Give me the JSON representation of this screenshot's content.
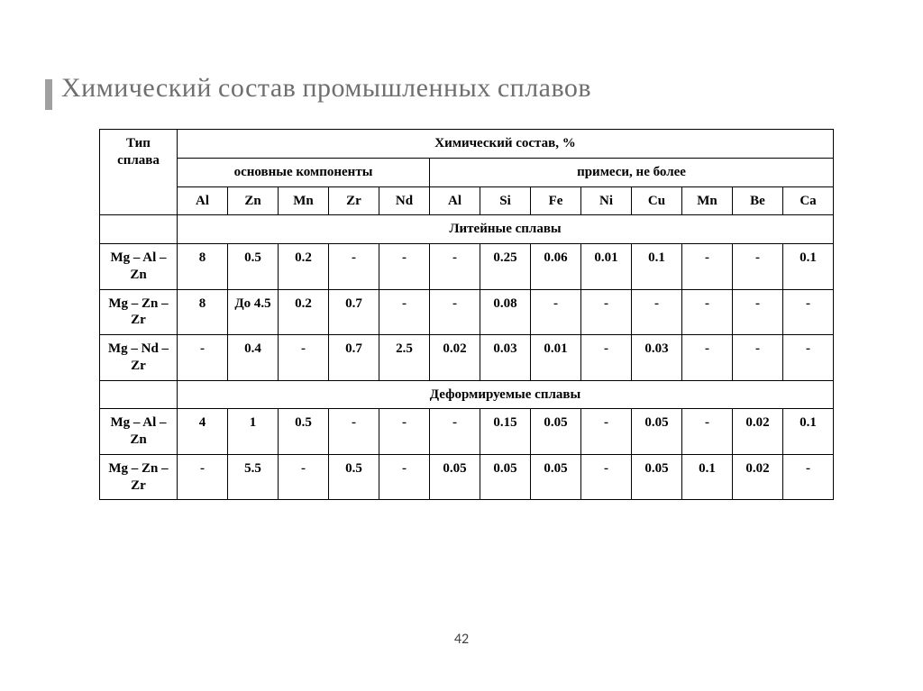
{
  "title": "Химический состав промышленных сплавов",
  "page_number": "42",
  "colors": {
    "title_color": "#6f6f6f",
    "accent_bar": "#a0a0a0",
    "border": "#000000",
    "background": "#ffffff",
    "text": "#000000"
  },
  "typography": {
    "title_font": "Cambria",
    "title_fontsize_pt": 22,
    "table_font": "Times New Roman",
    "table_fontsize_pt": 12,
    "table_fontweight": "bold"
  },
  "table": {
    "header": {
      "row_label": "Тип сплава",
      "top_group": "Химический состав, %",
      "main_group": "основные компоненты",
      "impurity_group": "примеси, не более",
      "main_cols": [
        "Al",
        "Zn",
        "Mn",
        "Zr",
        "Nd"
      ],
      "impurity_cols": [
        "Al",
        "Si",
        "Fe",
        "Ni",
        "Cu",
        "Mn",
        "Be",
        "Ca"
      ]
    },
    "sections": [
      {
        "title": "Литейные сплавы",
        "rows": [
          {
            "type": "Mg – Al – Zn",
            "v": [
              "8",
              "0.5",
              "0.2",
              "-",
              "-",
              "-",
              "0.25",
              "0.06",
              "0.01",
              "0.1",
              "-",
              "-",
              "0.1"
            ]
          },
          {
            "type": "Mg – Zn – Zr",
            "v": [
              "8",
              "До 4.5",
              "0.2",
              "0.7",
              "-",
              "-",
              "0.08",
              "-",
              "-",
              "-",
              "-",
              "-",
              "-"
            ]
          },
          {
            "type": "Mg – Nd – Zr",
            "v": [
              "-",
              "0.4",
              "-",
              "0.7",
              "2.5",
              "0.02",
              "0.03",
              "0.01",
              "-",
              "0.03",
              "-",
              "-",
              "-"
            ]
          }
        ]
      },
      {
        "title": "Деформируемые сплавы",
        "rows": [
          {
            "type": "Mg – Al – Zn",
            "v": [
              "4",
              "1",
              "0.5",
              "-",
              "-",
              "-",
              "0.15",
              "0.05",
              "-",
              "0.05",
              "-",
              "0.02",
              "0.1"
            ]
          },
          {
            "type": "Mg – Zn – Zr",
            "v": [
              "-",
              "5.5",
              "-",
              "0.5",
              "-",
              "0.05",
              "0.05",
              "0.05",
              "-",
              "0.05",
              "0.1",
              "0.02",
              "-"
            ]
          }
        ]
      }
    ]
  }
}
